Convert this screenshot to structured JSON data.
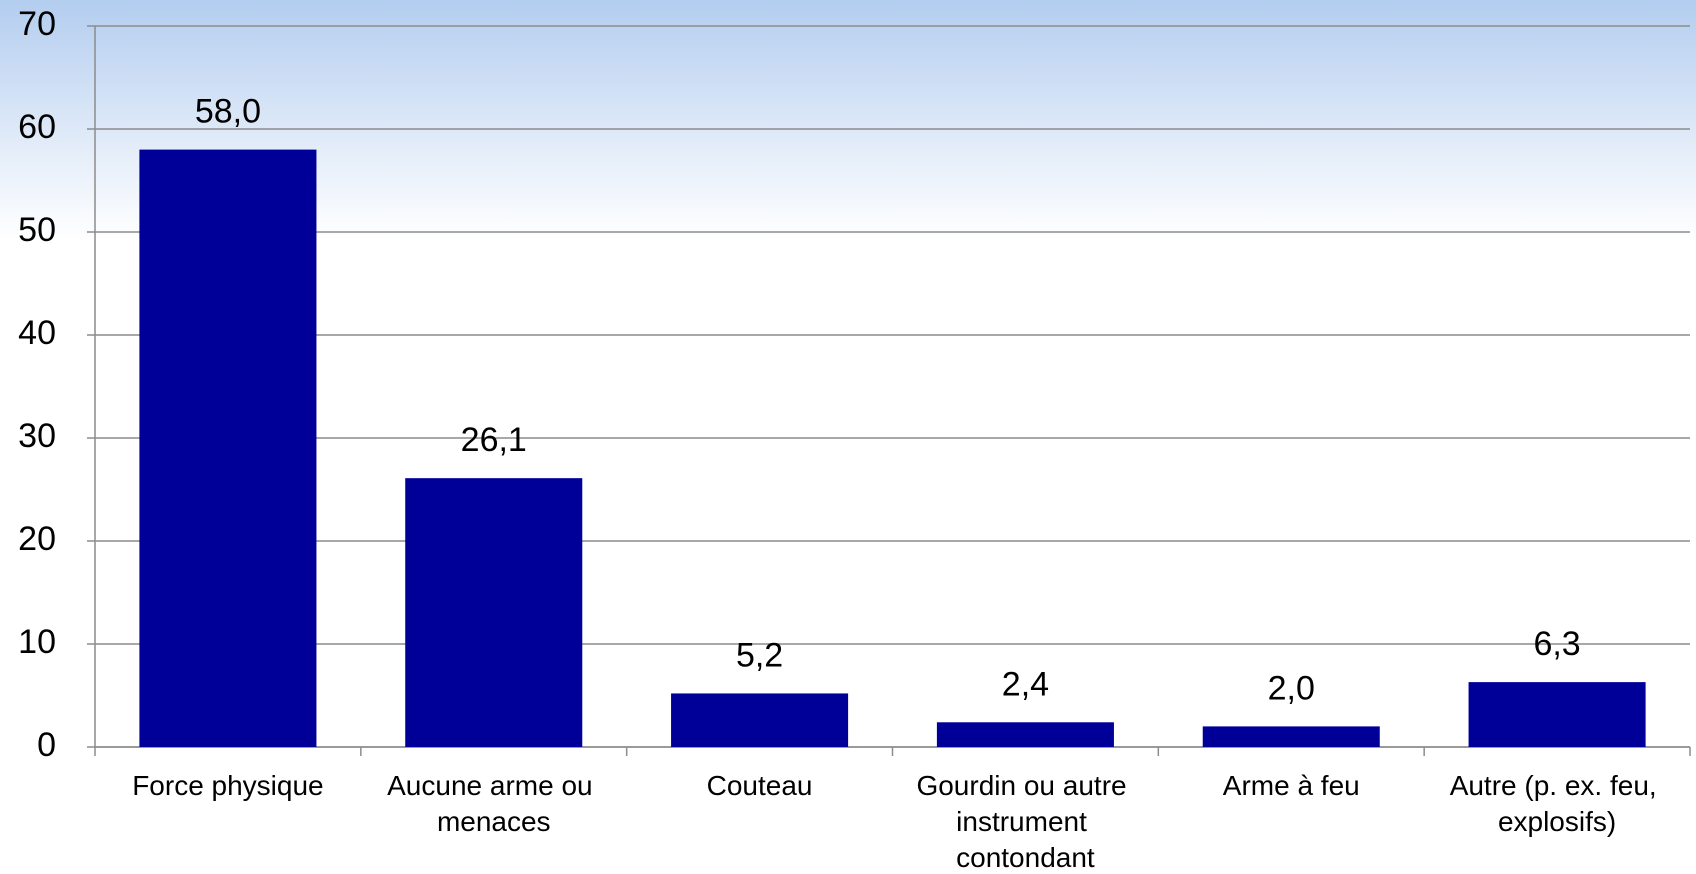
{
  "chart_data": {
    "type": "bar",
    "categories": [
      "Force physique",
      "Aucune arme ou menaces",
      "Couteau",
      "Gourdin ou autre instrument contondant",
      "Arme à feu",
      "Autre (p. ex. feu, explosifs)"
    ],
    "values": [
      58.0,
      26.1,
      5.2,
      2.4,
      2.0,
      6.3
    ],
    "value_labels": [
      "58,0",
      "26,1",
      "5,2",
      "2,4",
      "2,0",
      "6,3"
    ],
    "color": "#000099",
    "ylim": [
      0,
      70
    ],
    "yticks": [
      0,
      10,
      20,
      30,
      40,
      50,
      60,
      70
    ],
    "grid": true
  }
}
